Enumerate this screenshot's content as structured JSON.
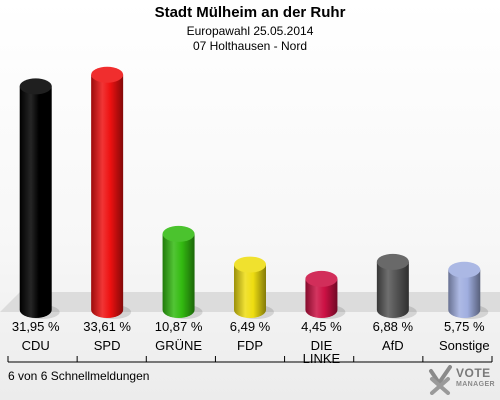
{
  "header": {
    "title": "Stadt Mülheim an der Ruhr",
    "subtitle": "Europawahl 25.05.2014",
    "district": "07 Holthausen - Nord"
  },
  "footer": {
    "status": "6 von 6 Schnellmeldungen"
  },
  "logo": {
    "line1": "VOTE",
    "line2": "MANAGER",
    "icon": "checkmark-x-icon"
  },
  "chart_data": {
    "type": "bar",
    "categories": [
      "CDU",
      "SPD",
      "GRÜNE",
      "FDP",
      "DIE LINKE",
      "AfD",
      "Sonstige"
    ],
    "category_lines": [
      [
        "CDU"
      ],
      [
        "SPD"
      ],
      [
        "GRÜNE"
      ],
      [
        "FDP"
      ],
      [
        "DIE",
        "LINKE"
      ],
      [
        "AfD"
      ],
      [
        "Sonstige"
      ]
    ],
    "values": [
      31.95,
      33.61,
      10.87,
      6.49,
      4.45,
      6.88,
      5.75
    ],
    "value_labels": [
      "31,95 %",
      "33,61 %",
      "10,87 %",
      "6,49 %",
      "4,45 %",
      "6,88 %",
      "5,75 %"
    ],
    "colors": [
      "#000000",
      "#ee1111",
      "#33bb11",
      "#eedd11",
      "#cc1144",
      "#555555",
      "#a0aee0"
    ],
    "title": "Stadt Mülheim an der Ruhr",
    "ylim": [
      0,
      35
    ],
    "grid": false,
    "legend": "none"
  }
}
